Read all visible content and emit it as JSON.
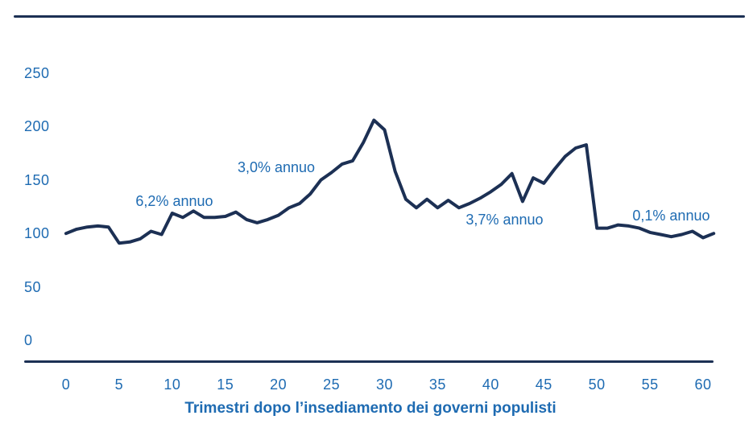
{
  "colors": {
    "line": "#1c3054",
    "label_blue": "#1e6bb2",
    "background": "#ffffff"
  },
  "chart_data": {
    "type": "line",
    "title": "",
    "xlabel": "Trimestri dopo l’insediamento dei governi populisti",
    "ylabel": "",
    "xlim": [
      0,
      61
    ],
    "ylim": [
      0,
      250
    ],
    "grid": false,
    "legend": "none",
    "x_ticks": [
      0,
      5,
      10,
      15,
      20,
      25,
      30,
      35,
      40,
      45,
      50,
      55,
      60
    ],
    "y_ticks": [
      0,
      50,
      100,
      150,
      200,
      250
    ],
    "x": [
      0,
      1,
      2,
      3,
      4,
      5,
      6,
      7,
      8,
      9,
      10,
      11,
      12,
      13,
      14,
      15,
      16,
      17,
      18,
      19,
      20,
      21,
      22,
      23,
      24,
      25,
      26,
      27,
      28,
      29,
      30,
      31,
      32,
      33,
      34,
      35,
      36,
      37,
      38,
      39,
      40,
      41,
      42,
      43,
      44,
      45,
      46,
      47,
      48,
      49,
      50,
      51,
      52,
      53,
      54,
      55,
      56,
      57,
      58,
      59,
      60,
      61
    ],
    "values": [
      100,
      104,
      106,
      107,
      106,
      91,
      92,
      95,
      102,
      99,
      119,
      115,
      121,
      115,
      115,
      116,
      120,
      113,
      110,
      113,
      117,
      124,
      128,
      137,
      150,
      157,
      165,
      168,
      185,
      206,
      197,
      158,
      132,
      124,
      132,
      124,
      131,
      124,
      128,
      133,
      139,
      146,
      156,
      130,
      152,
      147,
      160,
      172,
      180,
      183,
      105,
      105,
      108,
      107,
      105,
      101,
      99,
      97,
      99,
      102,
      96,
      100
    ],
    "annotations": [
      {
        "text": "6,2% annuo",
        "x": 10.2,
        "y": 130
      },
      {
        "text": "3,0% annuo",
        "x": 19.8,
        "y": 162
      },
      {
        "text": "3,7% annuo",
        "x": 41.3,
        "y": 113
      },
      {
        "text": "0,1% annuo",
        "x": 57.0,
        "y": 117
      }
    ]
  }
}
